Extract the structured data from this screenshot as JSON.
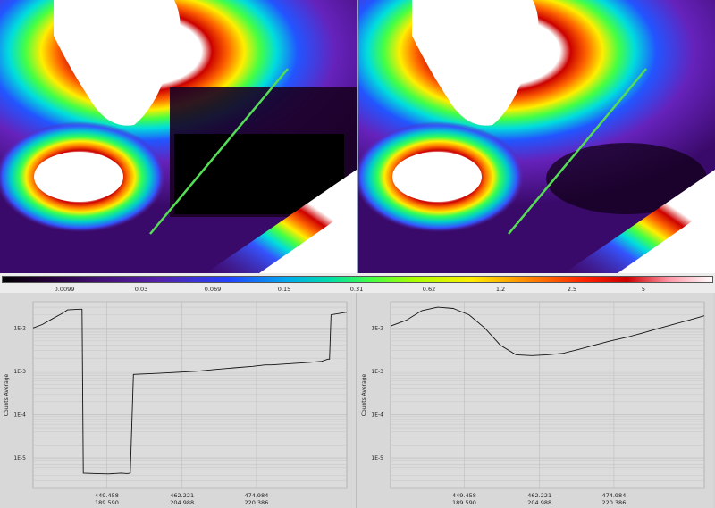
{
  "colorbar": {
    "ticks": [
      "0.0099",
      "0.03",
      "0.069",
      "0.15",
      "0.31",
      "0.62",
      "1.2",
      "2.5",
      "5"
    ]
  },
  "plots": [
    {
      "ylabel": "Counts Average",
      "yticks": [
        "1E-2",
        "1E-3",
        "1E-4",
        "1E-5"
      ],
      "xticks_top": [
        "449.458",
        "462.221",
        "474.984"
      ],
      "xticks_bottom": [
        "189.590",
        "204.988",
        "220.386"
      ]
    },
    {
      "ylabel": "Counts Average",
      "yticks": [
        "1E-2",
        "1E-3",
        "1E-4",
        "1E-5"
      ],
      "xticks_top": [
        "449.458",
        "462.221",
        "474.984"
      ],
      "xticks_bottom": [
        "189.590",
        "204.988",
        "220.386"
      ]
    }
  ],
  "chart_data": [
    {
      "type": "line",
      "ylabel": "Counts Average",
      "yscale": "log",
      "ylim": [
        2e-06,
        0.04
      ],
      "x": [
        0,
        0.03,
        0.06,
        0.09,
        0.11,
        0.15,
        0.156,
        0.16,
        0.2,
        0.24,
        0.28,
        0.3,
        0.31,
        0.32,
        0.4,
        0.46,
        0.52,
        0.58,
        0.64,
        0.7,
        0.74,
        0.75,
        0.76,
        0.82,
        0.88,
        0.92,
        0.94,
        0.945,
        0.95,
        1.0
      ],
      "y": [
        0.01,
        0.012,
        0.016,
        0.021,
        0.026,
        0.027,
        0.027,
        4.5e-06,
        4.4e-06,
        4.3e-06,
        4.5e-06,
        4.4e-06,
        4.5e-06,
        0.00085,
        0.0009,
        0.00095,
        0.001,
        0.0011,
        0.0012,
        0.0013,
        0.0014,
        0.0014,
        0.0014,
        0.0015,
        0.0016,
        0.0017,
        0.0019,
        0.0019,
        0.02,
        0.023
      ]
    },
    {
      "type": "line",
      "ylabel": "Counts Average",
      "yscale": "log",
      "ylim": [
        2e-06,
        0.04
      ],
      "x": [
        0,
        0.05,
        0.1,
        0.15,
        0.2,
        0.25,
        0.3,
        0.35,
        0.4,
        0.45,
        0.5,
        0.55,
        0.6,
        0.65,
        0.7,
        0.75,
        0.8,
        0.85,
        0.9,
        0.95,
        1.0
      ],
      "y": [
        0.011,
        0.015,
        0.025,
        0.03,
        0.028,
        0.02,
        0.01,
        0.004,
        0.0024,
        0.0023,
        0.0024,
        0.0026,
        0.0032,
        0.004,
        0.005,
        0.006,
        0.0075,
        0.0095,
        0.012,
        0.015,
        0.019
      ]
    }
  ]
}
